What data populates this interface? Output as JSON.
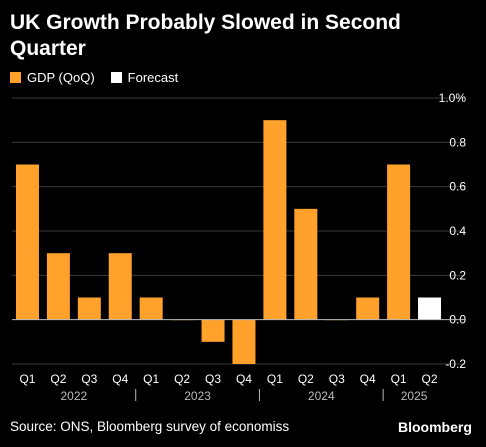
{
  "title": "UK Growth Probably Slowed in Second Quarter",
  "legend": [
    {
      "label": "GDP (QoQ)",
      "color": "#ffa12b"
    },
    {
      "label": "Forecast",
      "color": "#ffffff"
    }
  ],
  "source": "Source: ONS, Bloomberg survey of economiss",
  "logo": "Bloomberg",
  "colors": {
    "actual": "#ffa12b",
    "forecast": "#ffffff",
    "grid": "#3a3a3a",
    "axis": "#bbbbbb"
  },
  "chart_data": {
    "type": "bar",
    "title": "UK Growth Probably Slowed in Second Quarter",
    "categories": [
      "Q1",
      "Q2",
      "Q3",
      "Q4",
      "Q1",
      "Q2",
      "Q3",
      "Q4",
      "Q1",
      "Q2",
      "Q3",
      "Q4",
      "Q1",
      "Q2"
    ],
    "years": [
      {
        "label": "2022",
        "start": 0,
        "end": 3
      },
      {
        "label": "2023",
        "start": 4,
        "end": 7
      },
      {
        "label": "2024",
        "start": 8,
        "end": 11
      },
      {
        "label": "2025",
        "start": 12,
        "end": 13
      }
    ],
    "series": [
      {
        "name": "GDP (QoQ)",
        "values": [
          0.7,
          0.3,
          0.1,
          0.3,
          0.1,
          0.0,
          -0.1,
          -0.2,
          0.9,
          0.5,
          0.0,
          0.1,
          0.7,
          null
        ]
      },
      {
        "name": "Forecast",
        "values": [
          null,
          null,
          null,
          null,
          null,
          null,
          null,
          null,
          null,
          null,
          null,
          null,
          null,
          0.1
        ]
      }
    ],
    "ylim": [
      -0.2,
      1.0
    ],
    "yticks": [
      -0.2,
      0.0,
      0.2,
      0.4,
      0.6,
      0.8,
      1.0
    ],
    "ytick_labels": [
      "-0.2",
      "0.0",
      "0.2",
      "0.4",
      "0.6",
      "0.8",
      "1.0%"
    ],
    "grid": true,
    "legend_position": "top-left"
  }
}
